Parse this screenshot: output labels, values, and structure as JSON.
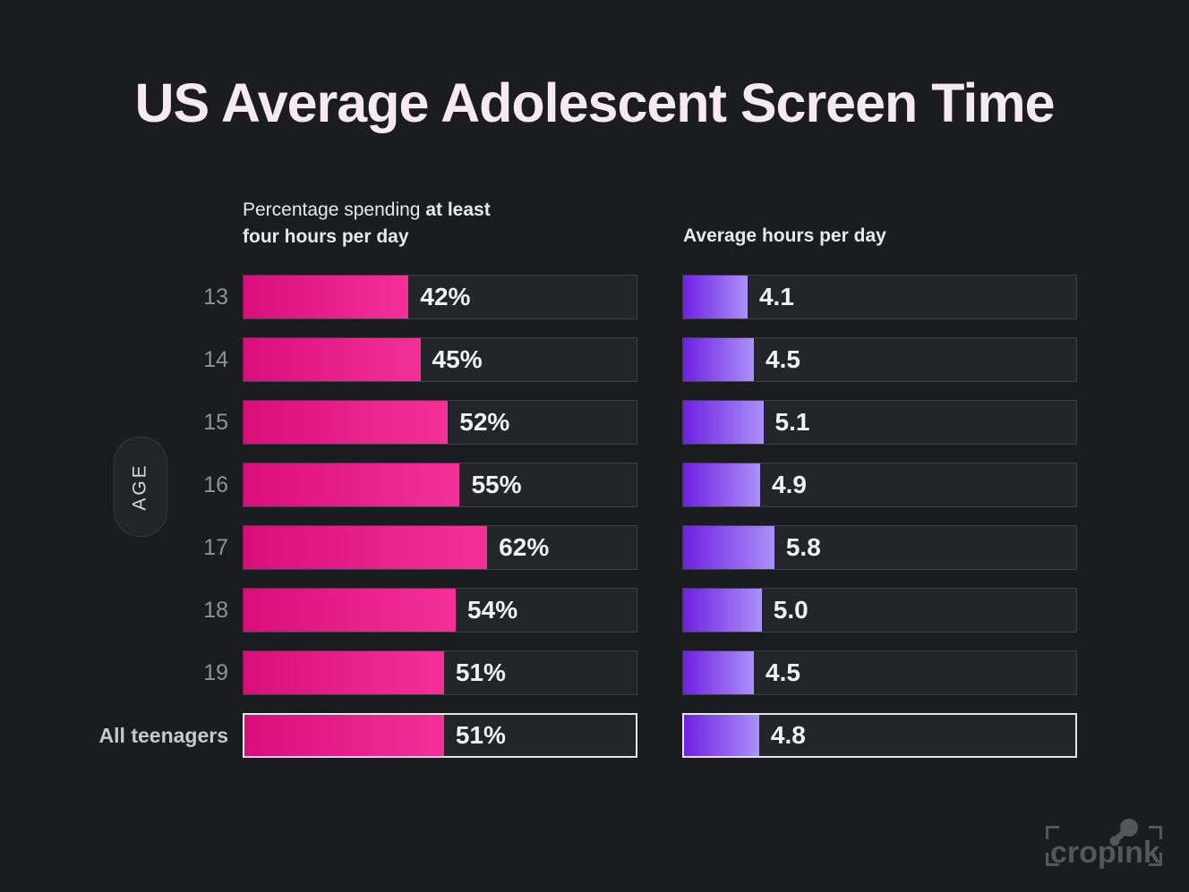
{
  "title": "US Average Adolescent Screen Time",
  "axis": {
    "label": "AGE"
  },
  "headers": {
    "left_line1_regular": "Percentage spending",
    "left_line1_bold": "at least",
    "left_line2_bold": "four hours per day",
    "right": "Average hours per day"
  },
  "rows": [
    {
      "age": "13",
      "pct": 42,
      "pct_label": "42%",
      "hours": 4.1,
      "hours_label": "4.1",
      "highlight": false
    },
    {
      "age": "14",
      "pct": 45,
      "pct_label": "45%",
      "hours": 4.5,
      "hours_label": "4.5",
      "highlight": false
    },
    {
      "age": "15",
      "pct": 52,
      "pct_label": "52%",
      "hours": 5.1,
      "hours_label": "5.1",
      "highlight": false
    },
    {
      "age": "16",
      "pct": 55,
      "pct_label": "55%",
      "hours": 4.9,
      "hours_label": "4.9",
      "highlight": false
    },
    {
      "age": "17",
      "pct": 62,
      "pct_label": "62%",
      "hours": 5.8,
      "hours_label": "5.8",
      "highlight": false
    },
    {
      "age": "18",
      "pct": 54,
      "pct_label": "54%",
      "hours": 5.0,
      "hours_label": "5.0",
      "highlight": false
    },
    {
      "age": "19",
      "pct": 51,
      "pct_label": "51%",
      "hours": 4.5,
      "hours_label": "4.5",
      "highlight": false
    },
    {
      "age": "All teenagers",
      "pct": 51,
      "pct_label": "51%",
      "hours": 4.8,
      "hours_label": "4.8",
      "highlight": true
    }
  ],
  "logo": {
    "text": "cropink"
  },
  "colors": {
    "background": "#1a1c1f",
    "track_background": "#22262b",
    "track_border": "#3a4046",
    "highlight_border": "#e9e4e7",
    "pink_gradient_start": "#d90e7b",
    "pink_gradient_end": "#f53098",
    "purple_gradient_start": "#6f20e2",
    "purple_gradient_end": "#ab90f9",
    "title_color": "#f7e9f2"
  },
  "chart_data": {
    "type": "bar",
    "orientation": "horizontal",
    "title": "US Average Adolescent Screen Time",
    "categories": [
      "13",
      "14",
      "15",
      "16",
      "17",
      "18",
      "19",
      "All teenagers"
    ],
    "category_axis_label": "AGE",
    "series": [
      {
        "name": "Percentage spending at least four hours per day",
        "unit": "%",
        "values": [
          42,
          45,
          52,
          55,
          62,
          54,
          51,
          51
        ],
        "labels": [
          "42%",
          "45%",
          "52%",
          "55%",
          "62%",
          "54%",
          "51%",
          "51%"
        ],
        "xlim": [
          0,
          100
        ],
        "color_gradient": [
          "#d90e7b",
          "#f53098"
        ]
      },
      {
        "name": "Average hours per day",
        "unit": "hours",
        "values": [
          4.1,
          4.5,
          5.1,
          4.9,
          5.8,
          5.0,
          4.5,
          4.8
        ],
        "labels": [
          "4.1",
          "4.5",
          "5.1",
          "4.9",
          "5.8",
          "5.0",
          "4.5",
          "4.8"
        ],
        "xlim": [
          0,
          25
        ],
        "color_gradient": [
          "#6f20e2",
          "#ab90f9"
        ]
      }
    ],
    "grid": false,
    "legend_position": "column headers above each bar group",
    "highlighted_category": "All teenagers"
  }
}
